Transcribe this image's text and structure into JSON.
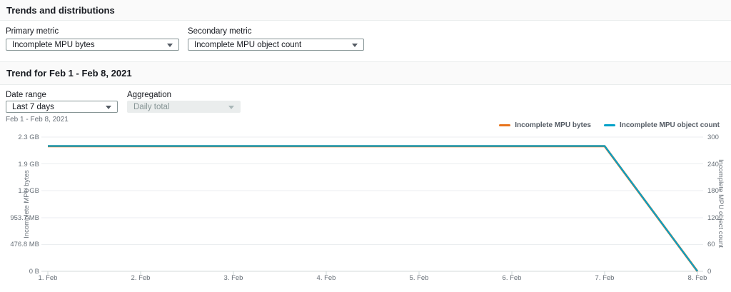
{
  "sections": {
    "trends": {
      "title": "Trends and distributions"
    },
    "trend": {
      "title": "Trend for Feb 1 - Feb 8, 2021"
    }
  },
  "controls": {
    "primary_metric": {
      "label": "Primary metric",
      "value": "Incomplete MPU bytes"
    },
    "secondary_metric": {
      "label": "Secondary metric",
      "value": "Incomplete MPU object count"
    },
    "date_range": {
      "label": "Date range",
      "value": "Last 7 days",
      "hint": "Feb 1 - Feb 8, 2021"
    },
    "aggregation": {
      "label": "Aggregation",
      "value": "Daily total",
      "state": "disabled"
    }
  },
  "chart_data": {
    "type": "line",
    "x": [
      "1. Feb",
      "2. Feb",
      "3. Feb",
      "4. Feb",
      "5. Feb",
      "6. Feb",
      "7. Feb",
      "8. Feb"
    ],
    "series": [
      {
        "name": "Incomplete MPU bytes",
        "axis": "left",
        "color": "#e8731c",
        "values": [
          2330000000,
          2330000000,
          2330000000,
          2330000000,
          2330000000,
          2330000000,
          2330000000,
          0
        ]
      },
      {
        "name": "Incomplete MPU object count",
        "axis": "right",
        "color": "#00a1c9",
        "values": [
          280,
          280,
          280,
          280,
          280,
          280,
          280,
          0
        ]
      }
    ],
    "left_axis": {
      "title": "Incomplete MPU bytes",
      "min": 0,
      "max": 2500000000,
      "ticks_top_to_bottom": [
        "2.3 GB",
        "1.9 GB",
        "1.4 GB",
        "953.7 MB",
        "476.8 MB",
        "0 B"
      ]
    },
    "right_axis": {
      "title": "Incomplete MPU object count",
      "min": 0,
      "max": 300,
      "ticks_top_to_bottom": [
        "300",
        "240",
        "180",
        "120",
        "60",
        "0"
      ]
    },
    "legend_position": "top-right",
    "grid": true
  }
}
